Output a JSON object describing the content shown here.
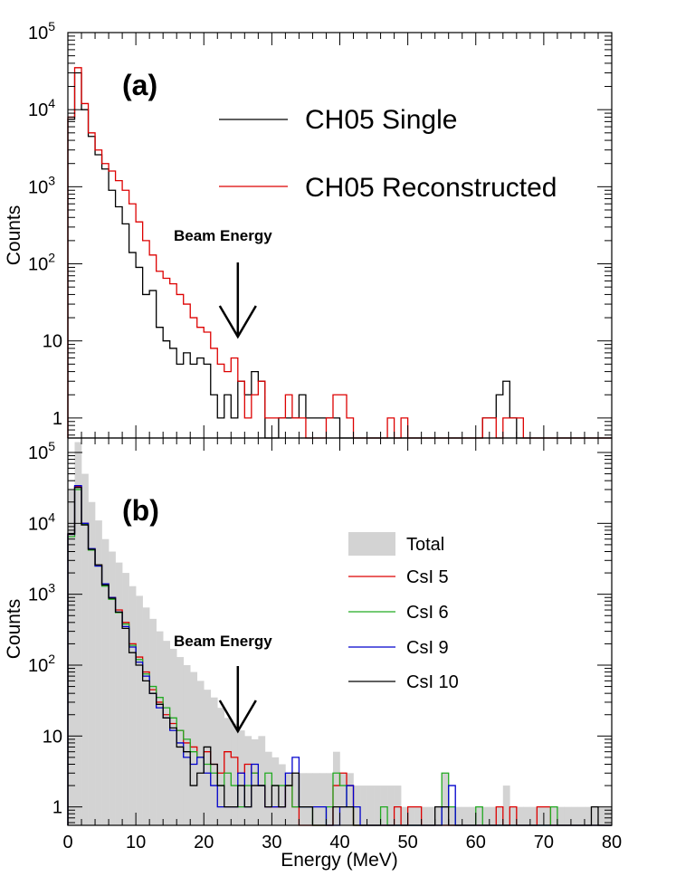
{
  "chart_data": [
    {
      "type": "histogram",
      "panel_label": "(a)",
      "ylabel": "Counts",
      "yscale": "log",
      "ylim": [
        0.55,
        100000
      ],
      "xlim": [
        0,
        80
      ],
      "ytick_labels": [
        {
          "value": 1,
          "base": "1",
          "exp": ""
        },
        {
          "value": 10,
          "base": "10",
          "exp": ""
        },
        {
          "value": 100,
          "base": "10",
          "exp": "2"
        },
        {
          "value": 1000,
          "base": "10",
          "exp": "3"
        },
        {
          "value": 10000,
          "base": "10",
          "exp": "4"
        },
        {
          "value": 100000,
          "base": "10",
          "exp": "5"
        }
      ],
      "annotation": {
        "text": "Beam Energy",
        "arrow_x": 25
      },
      "bin_width": 1,
      "series": [
        {
          "name": "CH05 Single",
          "color": "#000000",
          "values": [
            7500,
            30000,
            10000,
            4500,
            2600,
            1700,
            900,
            550,
            330,
            140,
            90,
            40,
            45,
            15,
            10,
            8,
            5,
            7,
            5,
            6,
            5,
            2,
            1,
            2,
            1,
            3,
            2,
            4,
            3,
            0,
            0,
            1,
            1,
            1,
            2,
            1,
            1,
            1,
            1,
            1,
            0,
            0,
            0,
            0,
            0,
            0,
            0,
            0,
            0,
            0,
            0,
            0,
            0,
            0,
            0,
            0,
            0,
            0,
            0,
            0,
            0,
            1,
            1,
            2,
            3,
            1,
            0,
            0,
            0,
            0,
            0,
            0,
            0,
            0,
            0,
            0,
            0,
            0,
            0,
            0
          ]
        },
        {
          "name": "CH05 Reconstructed",
          "color": "#dd0000",
          "values": [
            8000,
            35000,
            12000,
            5000,
            3000,
            2000,
            1600,
            1200,
            900,
            600,
            350,
            200,
            130,
            80,
            65,
            55,
            40,
            30,
            20,
            15,
            13,
            8,
            5,
            4,
            6,
            3,
            1,
            2,
            3,
            1,
            1,
            1,
            2,
            1,
            1,
            0,
            0,
            0,
            1,
            2,
            2,
            1,
            0,
            0,
            0,
            0,
            0,
            1,
            0,
            1,
            0,
            0,
            0,
            0,
            0,
            0,
            0,
            0,
            0,
            0,
            0,
            1,
            1,
            0,
            1,
            1,
            1,
            0,
            0,
            0,
            0,
            0,
            0,
            0,
            0,
            0,
            0,
            0,
            0,
            0
          ]
        }
      ]
    },
    {
      "type": "histogram",
      "panel_label": "(b)",
      "xlabel": "Energy (MeV)",
      "ylabel": "Counts",
      "yscale": "log",
      "ylim": [
        0.55,
        160000
      ],
      "xlim": [
        0,
        80
      ],
      "xticks": [
        0,
        10,
        20,
        30,
        40,
        50,
        60,
        70,
        80
      ],
      "ytick_labels": [
        {
          "value": 1,
          "base": "1",
          "exp": ""
        },
        {
          "value": 10,
          "base": "10",
          "exp": ""
        },
        {
          "value": 100,
          "base": "10",
          "exp": "2"
        },
        {
          "value": 1000,
          "base": "10",
          "exp": "3"
        },
        {
          "value": 10000,
          "base": "10",
          "exp": "4"
        },
        {
          "value": 100000,
          "base": "10",
          "exp": "5"
        }
      ],
      "annotation": {
        "text": "Beam Energy",
        "arrow_x": 25
      },
      "bin_width": 1,
      "series": [
        {
          "name": "Total",
          "color": "#d3d3d3",
          "style": "filled",
          "values": [
            30000,
            140000,
            50000,
            20000,
            11000,
            6000,
            4000,
            2800,
            2000,
            1300,
            950,
            650,
            450,
            300,
            220,
            170,
            130,
            100,
            80,
            60,
            45,
            35,
            25,
            18,
            15,
            12,
            10,
            9,
            10,
            6,
            5,
            4,
            3,
            3,
            3,
            3,
            3,
            3,
            3,
            6,
            3,
            3,
            2,
            2,
            2,
            2,
            2,
            2,
            2,
            1,
            1,
            1,
            1,
            1,
            1,
            3,
            1,
            1,
            1,
            1,
            1,
            1,
            1,
            1,
            2,
            1,
            1,
            1,
            1,
            1,
            1,
            1,
            1,
            1,
            1,
            1,
            1,
            1,
            1,
            1
          ]
        },
        {
          "name": "CsI 5",
          "color": "#dd0000",
          "values": [
            7000,
            33000,
            10000,
            4300,
            2600,
            1400,
            900,
            600,
            400,
            200,
            130,
            80,
            45,
            30,
            20,
            15,
            12,
            8,
            7,
            5,
            6,
            4,
            3,
            6,
            5,
            3,
            4,
            3,
            2,
            1,
            1,
            1,
            2,
            1,
            0,
            0,
            0,
            0,
            0,
            2,
            3,
            2,
            0,
            0,
            0,
            0,
            0,
            0,
            1,
            0,
            1,
            1,
            0,
            0,
            0,
            0,
            0,
            0,
            0,
            0,
            0,
            0,
            0,
            1,
            0,
            1,
            0,
            0,
            0,
            1,
            1,
            0,
            0,
            0,
            0,
            0,
            0,
            0,
            0,
            0
          ]
        },
        {
          "name": "CsI 6",
          "color": "#22aa22",
          "values": [
            6500,
            30000,
            9800,
            4200,
            2500,
            1300,
            850,
            550,
            380,
            190,
            120,
            75,
            50,
            35,
            25,
            18,
            12,
            9,
            6,
            5,
            4,
            3,
            2,
            3,
            2,
            1,
            2,
            3,
            2,
            3,
            2,
            2,
            2,
            1,
            1,
            1,
            0,
            0,
            1,
            3,
            2,
            1,
            0,
            0,
            0,
            0,
            1,
            0,
            0,
            0,
            0,
            0,
            0,
            0,
            0,
            3,
            1,
            0,
            0,
            0,
            1,
            0,
            0,
            0,
            0,
            0,
            0,
            0,
            0,
            0,
            0,
            1,
            0,
            0,
            0,
            0,
            0,
            0,
            0,
            0
          ]
        },
        {
          "name": "CsI 9",
          "color": "#0000cc",
          "values": [
            7000,
            34000,
            10000,
            4400,
            2500,
            1400,
            900,
            560,
            350,
            180,
            110,
            70,
            40,
            25,
            18,
            12,
            8,
            5,
            4,
            5,
            3,
            2,
            1,
            1,
            1,
            3,
            1,
            4,
            2,
            1,
            1,
            1,
            3,
            5,
            1,
            1,
            1,
            1,
            0,
            0,
            1,
            2,
            1,
            0,
            0,
            0,
            0,
            0,
            0,
            0,
            0,
            0,
            0,
            0,
            0,
            1,
            2,
            0,
            0,
            0,
            0,
            0,
            0,
            0,
            0,
            0,
            0,
            0,
            0,
            0,
            0,
            0,
            0,
            0,
            0,
            0,
            0,
            0,
            0,
            0
          ]
        },
        {
          "name": "CsI 10",
          "color": "#000000",
          "values": [
            7200,
            32000,
            9500,
            4300,
            2600,
            1350,
            880,
            560,
            330,
            150,
            100,
            60,
            40,
            28,
            18,
            13,
            7,
            6,
            2,
            3,
            7,
            4,
            2,
            1,
            1,
            2,
            1,
            2,
            2,
            1,
            2,
            1,
            2,
            3,
            1,
            1,
            0,
            0,
            0,
            1,
            1,
            1,
            0,
            0,
            0,
            0,
            0,
            0,
            0,
            0,
            0,
            0,
            0,
            0,
            1,
            1,
            0,
            0,
            0,
            0,
            0,
            0,
            0,
            0,
            0,
            0,
            0,
            0,
            0,
            0,
            0,
            0,
            0,
            0,
            0,
            0,
            0,
            1,
            0,
            0
          ]
        }
      ]
    }
  ]
}
